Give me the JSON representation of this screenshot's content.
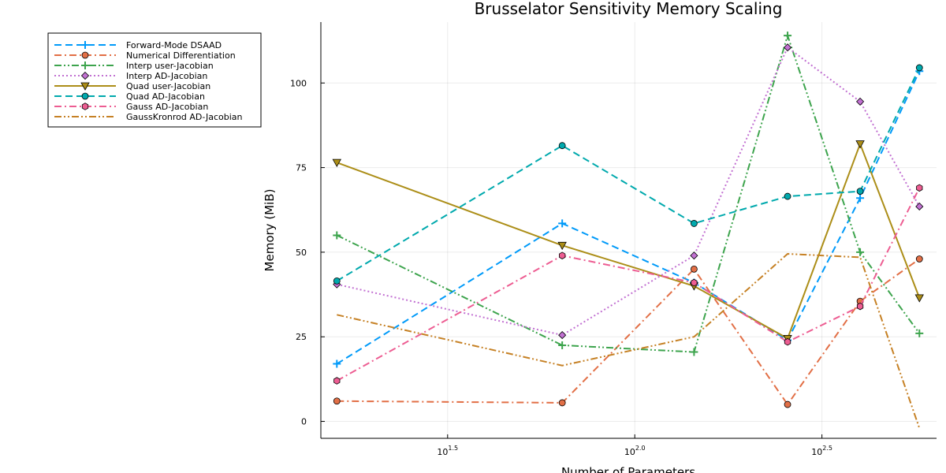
{
  "chart_data": {
    "type": "line",
    "title": "Brusselator Sensitivity Memory Scaling",
    "xlabel": "Number of Parameters",
    "ylabel": "Memory (MiB)",
    "x_scale": "log10",
    "x": [
      16,
      64,
      144,
      256,
      400,
      576
    ],
    "xlim": [
      14.5,
      640
    ],
    "ylim": [
      -5,
      118
    ],
    "x_ticks": [
      {
        "value": 31.6228,
        "base": "10",
        "exp": "1.5"
      },
      {
        "value": 100,
        "base": "10",
        "exp": "2.0"
      },
      {
        "value": 316.228,
        "base": "10",
        "exp": "2.5"
      }
    ],
    "y_ticks": [
      0,
      25,
      50,
      75,
      100
    ],
    "grid": true,
    "legend_position": "top-left",
    "series": [
      {
        "name": "Forward-Mode DSAAD",
        "color": "#009af9",
        "dash": "dash",
        "marker": "cross",
        "values": [
          17,
          58.5,
          41,
          24,
          66,
          103.5
        ]
      },
      {
        "name": "Numerical Differentiation",
        "color": "#e26f46",
        "dash": "dashdot",
        "marker": "circle",
        "values": [
          6,
          5.5,
          45,
          5,
          35.5,
          48
        ]
      },
      {
        "name": "Interp user-Jacobian",
        "color": "#3da44d",
        "dash": "dashdotdot",
        "marker": "cross",
        "values": [
          55,
          22.5,
          20.5,
          114,
          50,
          26
        ]
      },
      {
        "name": "Interp AD-Jacobian",
        "color": "#c271d2",
        "dash": "dot",
        "marker": "diamond",
        "values": [
          40.5,
          25.5,
          49,
          110.5,
          94.5,
          63.5
        ]
      },
      {
        "name": "Quad user-Jacobian",
        "color": "#ac8e18",
        "dash": "solid",
        "marker": "dtriangle",
        "values": [
          76.5,
          52,
          40,
          24.5,
          82,
          36.5
        ]
      },
      {
        "name": "Quad AD-Jacobian",
        "color": "#00a9ad",
        "dash": "dash",
        "marker": "circle",
        "values": [
          41.5,
          81.5,
          58.5,
          66.5,
          68,
          104.5
        ]
      },
      {
        "name": "Gauss AD-Jacobian",
        "color": "#ed5d92",
        "dash": "dashdot",
        "marker": "hexagon",
        "values": [
          12,
          49,
          41,
          23.5,
          34,
          69
        ]
      },
      {
        "name": "GaussKronrod AD-Jacobian",
        "color": "#c68125",
        "dash": "dashdotdot",
        "marker": "none",
        "values": [
          31.5,
          16.5,
          25,
          49.5,
          48.5,
          -2
        ]
      }
    ]
  }
}
